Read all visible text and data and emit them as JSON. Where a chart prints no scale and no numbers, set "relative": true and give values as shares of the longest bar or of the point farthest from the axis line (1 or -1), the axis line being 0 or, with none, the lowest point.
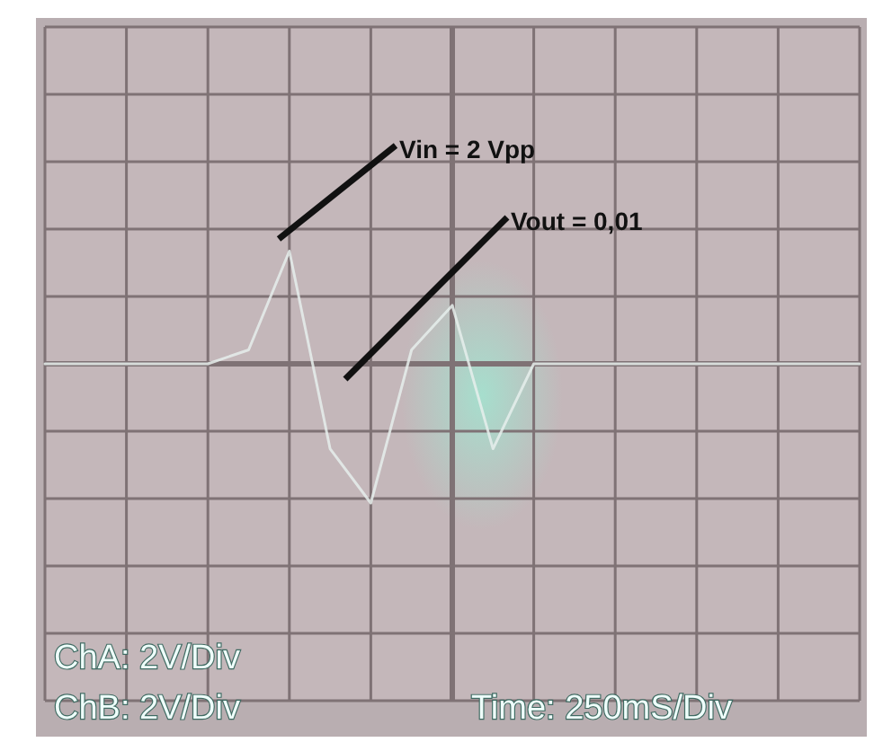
{
  "chart_data": {
    "type": "line",
    "relative": true,
    "grid": true,
    "categories": [
      null,
      null,
      null,
      null,
      null,
      null,
      null,
      null,
      null,
      null,
      null,
      null,
      null,
      null,
      null,
      null,
      null,
      null,
      null,
      null,
      null
    ],
    "series": [
      {
        "color": "#e6eeec",
        "values": [
          0,
          0,
          0,
          0,
          0,
          0.1,
          0.81,
          -0.61,
          -1,
          0.1,
          0.42,
          -0.61,
          0,
          0,
          0,
          0,
          0,
          0,
          0,
          0,
          0
        ]
      }
    ],
    "annotations": [
      "Vin = 2 Vpp",
      "Vout = 0,01",
      "ChA: 2V/Div",
      "ChB: 2V/Div",
      "Time: 250mS/Div"
    ]
  }
}
